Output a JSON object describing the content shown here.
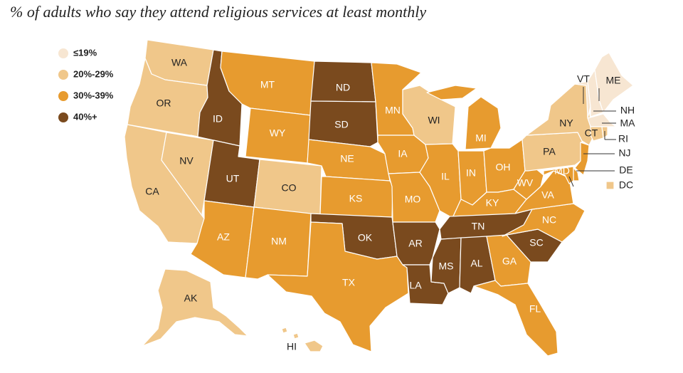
{
  "title": "% of adults who say they attend religious services at least monthly",
  "colors": {
    "le19": "#f7e6d2",
    "c20_29": "#f0c78a",
    "c30_39": "#e79b2f",
    "c40p": "#7a4a1e",
    "text_light": "#ffffff",
    "text_dark": "#222222"
  },
  "legend": [
    {
      "label": "≤19%",
      "cat": "le19"
    },
    {
      "label": "20%-29%",
      "cat": "c20_29"
    },
    {
      "label": "30%-39%",
      "cat": "c30_39"
    },
    {
      "label": "40%+",
      "cat": "c40p"
    }
  ],
  "states": [
    {
      "abbr": "WA",
      "cat": "c20_29"
    },
    {
      "abbr": "OR",
      "cat": "c20_29"
    },
    {
      "abbr": "CA",
      "cat": "c20_29"
    },
    {
      "abbr": "NV",
      "cat": "c20_29"
    },
    {
      "abbr": "ID",
      "cat": "c40p"
    },
    {
      "abbr": "MT",
      "cat": "c30_39"
    },
    {
      "abbr": "WY",
      "cat": "c30_39"
    },
    {
      "abbr": "UT",
      "cat": "c40p"
    },
    {
      "abbr": "CO",
      "cat": "c20_29"
    },
    {
      "abbr": "AZ",
      "cat": "c30_39"
    },
    {
      "abbr": "NM",
      "cat": "c30_39"
    },
    {
      "abbr": "ND",
      "cat": "c40p"
    },
    {
      "abbr": "SD",
      "cat": "c40p"
    },
    {
      "abbr": "NE",
      "cat": "c30_39"
    },
    {
      "abbr": "KS",
      "cat": "c30_39"
    },
    {
      "abbr": "OK",
      "cat": "c40p"
    },
    {
      "abbr": "TX",
      "cat": "c30_39"
    },
    {
      "abbr": "MN",
      "cat": "c30_39"
    },
    {
      "abbr": "IA",
      "cat": "c30_39"
    },
    {
      "abbr": "MO",
      "cat": "c30_39"
    },
    {
      "abbr": "AR",
      "cat": "c40p"
    },
    {
      "abbr": "LA",
      "cat": "c40p"
    },
    {
      "abbr": "WI",
      "cat": "c20_29"
    },
    {
      "abbr": "IL",
      "cat": "c30_39"
    },
    {
      "abbr": "MI",
      "cat": "c30_39"
    },
    {
      "abbr": "IN",
      "cat": "c30_39"
    },
    {
      "abbr": "OH",
      "cat": "c30_39"
    },
    {
      "abbr": "KY",
      "cat": "c30_39"
    },
    {
      "abbr": "TN",
      "cat": "c40p"
    },
    {
      "abbr": "MS",
      "cat": "c40p"
    },
    {
      "abbr": "AL",
      "cat": "c40p"
    },
    {
      "abbr": "GA",
      "cat": "c30_39"
    },
    {
      "abbr": "FL",
      "cat": "c30_39"
    },
    {
      "abbr": "SC",
      "cat": "c40p"
    },
    {
      "abbr": "NC",
      "cat": "c30_39"
    },
    {
      "abbr": "VA",
      "cat": "c30_39"
    },
    {
      "abbr": "WV",
      "cat": "c30_39"
    },
    {
      "abbr": "PA",
      "cat": "c20_29"
    },
    {
      "abbr": "NY",
      "cat": "c20_29"
    },
    {
      "abbr": "VT",
      "cat": "le19"
    },
    {
      "abbr": "ME",
      "cat": "le19"
    },
    {
      "abbr": "NH",
      "cat": "le19"
    },
    {
      "abbr": "MA",
      "cat": "le19"
    },
    {
      "abbr": "RI",
      "cat": "c20_29"
    },
    {
      "abbr": "CT",
      "cat": "c20_29"
    },
    {
      "abbr": "NJ",
      "cat": "c30_39"
    },
    {
      "abbr": "DE",
      "cat": "c30_39"
    },
    {
      "abbr": "MD",
      "cat": "c30_39"
    },
    {
      "abbr": "DC",
      "cat": "c20_29"
    },
    {
      "abbr": "AK",
      "cat": "c20_29"
    },
    {
      "abbr": "HI",
      "cat": "c20_29"
    }
  ]
}
